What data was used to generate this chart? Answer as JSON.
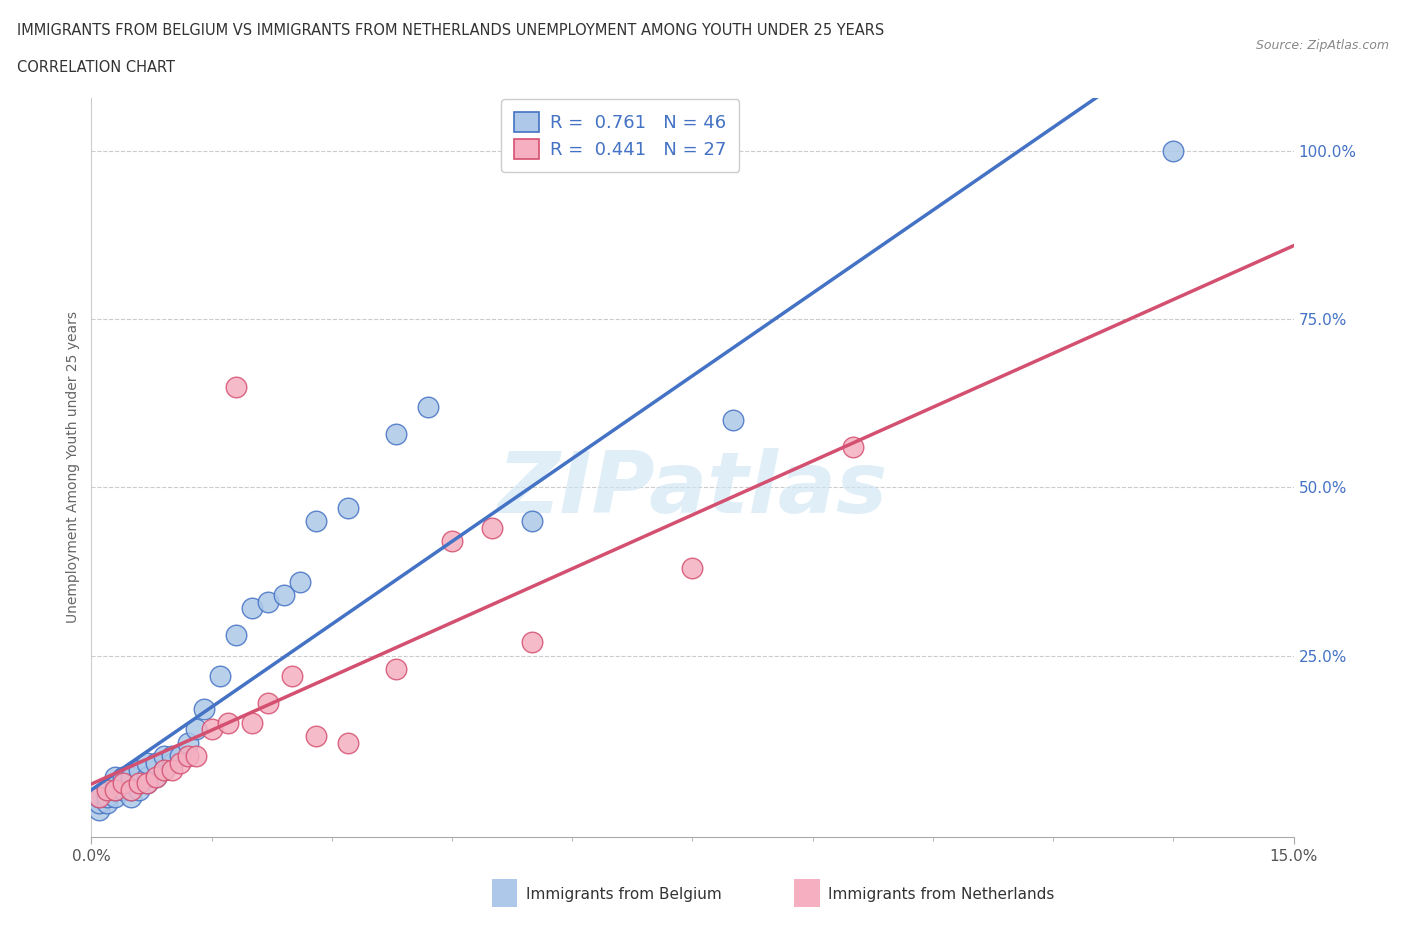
{
  "title_line1": "IMMIGRANTS FROM BELGIUM VS IMMIGRANTS FROM NETHERLANDS UNEMPLOYMENT AMONG YOUTH UNDER 25 YEARS",
  "title_line2": "CORRELATION CHART",
  "source": "Source: ZipAtlas.com",
  "ylabel": "Unemployment Among Youth under 25 years",
  "xmin": 0.0,
  "xmax": 0.15,
  "ymin": -0.02,
  "ymax": 1.08,
  "belgium_color": "#adc8e8",
  "netherlands_color": "#f5afc0",
  "belgium_line_color": "#4472c4",
  "netherlands_line_color": "#d45070",
  "R_belgium": 0.761,
  "N_belgium": 46,
  "R_netherlands": 0.441,
  "N_netherlands": 27,
  "watermark": "ZIPatlas",
  "belgium_x": [
    0.001,
    0.001,
    0.001,
    0.002,
    0.002,
    0.002,
    0.003,
    0.003,
    0.003,
    0.003,
    0.004,
    0.004,
    0.004,
    0.005,
    0.005,
    0.005,
    0.005,
    0.006,
    0.006,
    0.006,
    0.007,
    0.007,
    0.007,
    0.008,
    0.008,
    0.009,
    0.009,
    0.01,
    0.01,
    0.011,
    0.012,
    0.013,
    0.014,
    0.016,
    0.018,
    0.02,
    0.022,
    0.024,
    0.026,
    0.028,
    0.032,
    0.038,
    0.042,
    0.055,
    0.08,
    0.135
  ],
  "belgium_y": [
    0.02,
    0.03,
    0.04,
    0.03,
    0.04,
    0.05,
    0.04,
    0.05,
    0.06,
    0.07,
    0.05,
    0.06,
    0.07,
    0.04,
    0.05,
    0.06,
    0.07,
    0.05,
    0.06,
    0.08,
    0.06,
    0.07,
    0.09,
    0.07,
    0.09,
    0.08,
    0.1,
    0.09,
    0.1,
    0.1,
    0.12,
    0.14,
    0.17,
    0.22,
    0.28,
    0.32,
    0.33,
    0.34,
    0.36,
    0.45,
    0.47,
    0.58,
    0.62,
    0.45,
    0.6,
    1.0
  ],
  "netherlands_x": [
    0.001,
    0.002,
    0.003,
    0.004,
    0.005,
    0.006,
    0.007,
    0.008,
    0.009,
    0.01,
    0.011,
    0.012,
    0.013,
    0.015,
    0.017,
    0.018,
    0.02,
    0.022,
    0.025,
    0.028,
    0.032,
    0.038,
    0.045,
    0.05,
    0.055,
    0.075,
    0.095
  ],
  "netherlands_y": [
    0.04,
    0.05,
    0.05,
    0.06,
    0.05,
    0.06,
    0.06,
    0.07,
    0.08,
    0.08,
    0.09,
    0.1,
    0.1,
    0.14,
    0.15,
    0.65,
    0.15,
    0.18,
    0.22,
    0.13,
    0.12,
    0.23,
    0.42,
    0.44,
    0.27,
    0.38,
    0.56
  ],
  "legend_label_belgium": "Immigrants from Belgium",
  "legend_label_netherlands": "Immigrants from Netherlands"
}
